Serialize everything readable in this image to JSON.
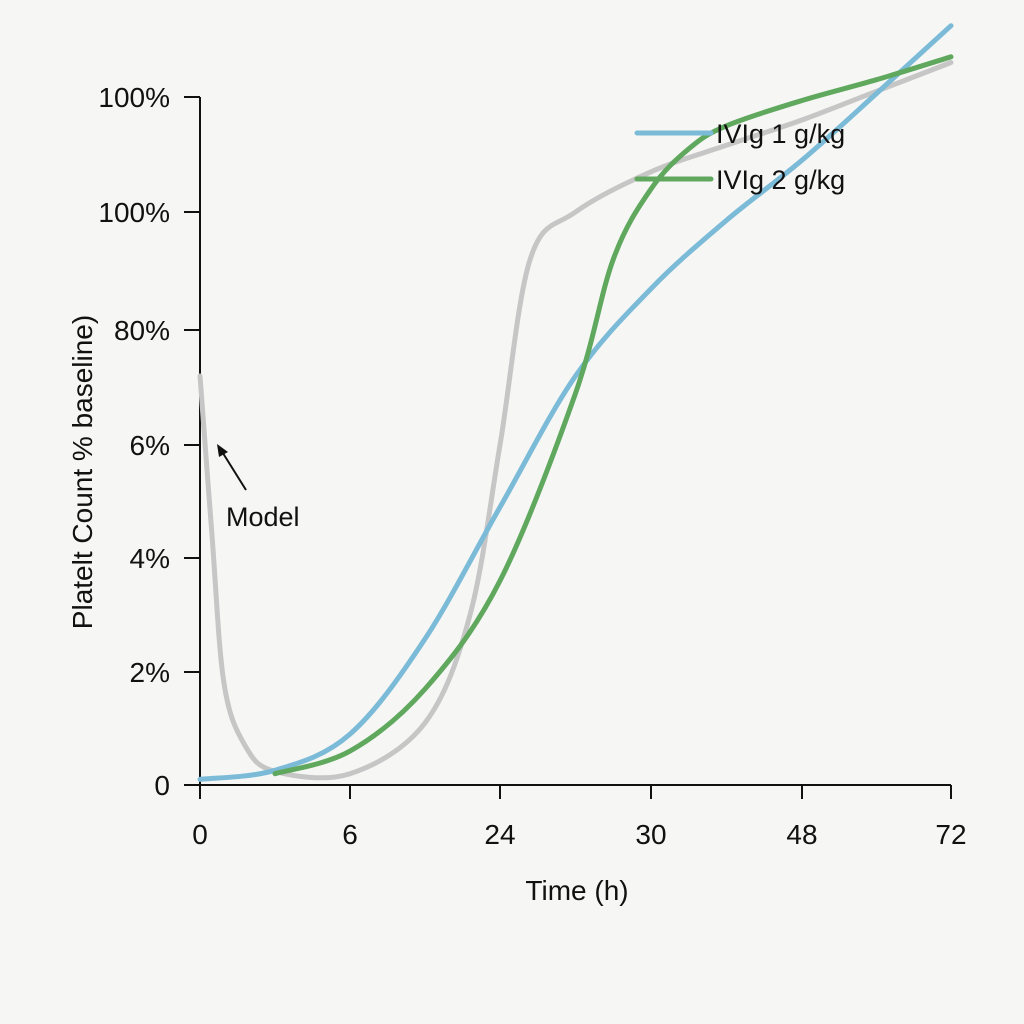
{
  "chart_data": {
    "type": "line",
    "title": "",
    "xlabel": "Time (h)",
    "ylabel": "Platelt Count % baseline)",
    "x_ticks": [
      "0",
      "6",
      "24",
      "30",
      "48",
      "72"
    ],
    "y_ticks": [
      "0",
      "2%",
      "4%",
      "6%",
      "80%",
      "100%",
      "100%"
    ],
    "x_note": "Series x values are tick indices (0 = '0', 1 = '6', 2 = '24', 3 = '30', 4 = '48', 5 = '72'); y values are tick indices (0 = '0', 1 = '2%', ..., 6 = top '100%').",
    "grid": false,
    "legend_position": "top-right",
    "series": [
      {
        "name": "IVIg 1 g/kg",
        "color": "#7bbbd8",
        "x": [
          0,
          0.5,
          1,
          1.5,
          2,
          2.5,
          3,
          3.5,
          4,
          4.5,
          5
        ],
        "y": [
          0.05,
          0.13,
          0.45,
          1.29,
          2.45,
          3.6,
          4.35,
          4.93,
          5.45,
          6.03,
          6.62
        ]
      },
      {
        "name": "IVIg 2 g/kg",
        "color": "#5fa85e",
        "x": [
          0.5,
          1,
          1.5,
          2,
          2.5,
          2.75,
          3,
          3.25,
          3.5,
          4,
          4.5,
          5
        ],
        "y": [
          0.1,
          0.3,
          0.85,
          1.8,
          3.45,
          4.6,
          5.2,
          5.55,
          5.75,
          5.97,
          6.15,
          6.35
        ]
      },
      {
        "name": "",
        "color": "#c6c6c6",
        "x": [
          0,
          0.08,
          0.16,
          0.3,
          0.5,
          1,
          1.5,
          1.8,
          2,
          2.2,
          2.5,
          3,
          3.5,
          4,
          4.5,
          5
        ],
        "y": [
          3.6,
          2.2,
          0.9,
          0.35,
          0.12,
          0.1,
          0.55,
          1.5,
          3.0,
          4.6,
          5.0,
          5.35,
          5.58,
          5.8,
          6.05,
          6.3
        ]
      }
    ],
    "annotations": [
      {
        "text": "Model",
        "target_series": 2
      }
    ]
  }
}
